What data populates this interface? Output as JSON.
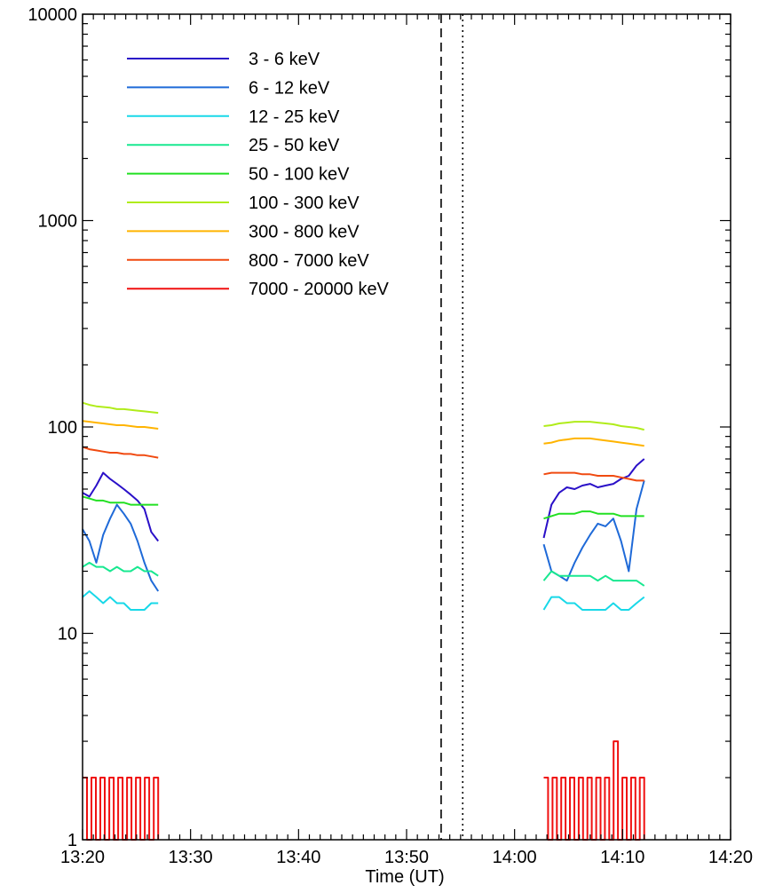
{
  "chart_data": {
    "type": "line",
    "title": "",
    "xlabel": "Time (UT)",
    "ylabel": "",
    "x_unit": "time (UT, HH:MM)",
    "xlim": [
      "13:20",
      "14:20"
    ],
    "ylim": [
      1,
      10000
    ],
    "y_scale": "log",
    "x_ticks": [
      "13:20",
      "13:30",
      "13:40",
      "13:50",
      "14:00",
      "14:10",
      "14:20"
    ],
    "y_ticks": [
      "1",
      "10",
      "100",
      "1000",
      "10000"
    ],
    "legend_position": "top-left",
    "grid": false,
    "vertical_markers": [
      {
        "style": "dashed",
        "x": "13:53.2"
      },
      {
        "style": "dotted",
        "x": "13:55.2"
      }
    ],
    "segments": [
      {
        "start": "13:20.0",
        "end": "13:27.0"
      },
      {
        "start": "14:02.7",
        "end": "14:12.0"
      }
    ],
    "series": [
      {
        "name": "3 - 6 keV",
        "color": "#2a10c8",
        "values": [
          [
            48,
            46,
            52,
            60,
            56,
            53,
            50,
            47,
            44,
            40,
            31,
            28
          ],
          [
            29,
            42,
            48,
            51,
            50,
            52,
            53,
            51,
            52,
            53,
            56,
            58,
            65,
            70
          ]
        ]
      },
      {
        "name": "6 - 12 keV",
        "color": "#1f6ad8",
        "values": [
          [
            32,
            28,
            22,
            30,
            36,
            42,
            38,
            34,
            28,
            22,
            18,
            16
          ],
          [
            27,
            20,
            19,
            18,
            22,
            26,
            30,
            34,
            33,
            36,
            28,
            20,
            40,
            55
          ]
        ]
      },
      {
        "name": "12 - 25 keV",
        "color": "#18d8e8",
        "values": [
          [
            15,
            16,
            15,
            14,
            15,
            14,
            14,
            13,
            13,
            13,
            14,
            14
          ],
          [
            13,
            15,
            15,
            14,
            14,
            13,
            13,
            13,
            13,
            14,
            13,
            13,
            14,
            15
          ]
        ]
      },
      {
        "name": "25 - 50 keV",
        "color": "#18e890",
        "values": [
          [
            21,
            22,
            21,
            21,
            20,
            21,
            20,
            20,
            21,
            20,
            20,
            19
          ],
          [
            18,
            20,
            19,
            19,
            19,
            19,
            19,
            18,
            19,
            18,
            18,
            18,
            18,
            17
          ]
        ]
      },
      {
        "name": "50 - 100 keV",
        "color": "#22e022",
        "values": [
          [
            46,
            45,
            44,
            44,
            43,
            43,
            43,
            42,
            42,
            42,
            42,
            42
          ],
          [
            36,
            37,
            38,
            38,
            38,
            39,
            39,
            38,
            38,
            38,
            37,
            37,
            37,
            37
          ]
        ]
      },
      {
        "name": "100 - 300 keV",
        "color": "#b0ec1a",
        "values": [
          [
            131,
            128,
            126,
            125,
            124,
            122,
            122,
            121,
            120,
            119,
            118,
            117
          ],
          [
            101,
            102,
            104,
            105,
            106,
            106,
            106,
            105,
            104,
            103,
            101,
            100,
            99,
            97
          ]
        ]
      },
      {
        "name": "300 - 800 keV",
        "color": "#ffb400",
        "values": [
          [
            107,
            106,
            105,
            104,
            103,
            102,
            102,
            101,
            100,
            100,
            99,
            98
          ],
          [
            83,
            84,
            86,
            87,
            88,
            88,
            88,
            87,
            86,
            85,
            84,
            83,
            82,
            81
          ]
        ]
      },
      {
        "name": "800 - 7000 keV",
        "color": "#f04a10",
        "values": [
          [
            80,
            78,
            77,
            76,
            75,
            75,
            74,
            74,
            73,
            73,
            72,
            71
          ],
          [
            59,
            60,
            60,
            60,
            60,
            59,
            59,
            58,
            58,
            58,
            57,
            56,
            55,
            55
          ]
        ]
      },
      {
        "name": "7000 - 20000 keV",
        "color": "#f01010",
        "values": [
          [
            2,
            1,
            2,
            1,
            2,
            1,
            2,
            1,
            2,
            1,
            2,
            1,
            2,
            1,
            2,
            1,
            2,
            1
          ],
          [
            2,
            1,
            2,
            1,
            2,
            1,
            2,
            1,
            2,
            1,
            2,
            1,
            2,
            1,
            2,
            1,
            3,
            1,
            2,
            1,
            2,
            1,
            2,
            1
          ]
        ]
      }
    ]
  }
}
